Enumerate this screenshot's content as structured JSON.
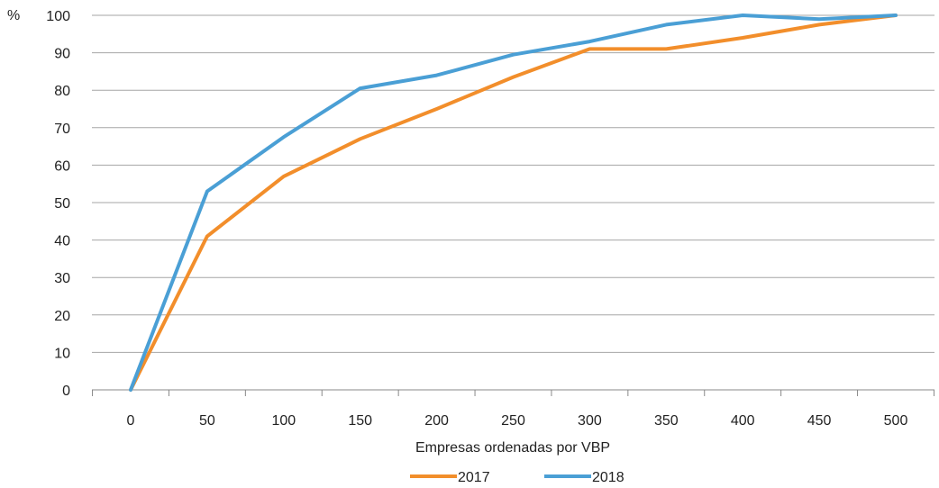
{
  "chart_data": {
    "type": "line",
    "title": "",
    "ylabel": "%",
    "xlabel": "Empresas ordenadas por VBP",
    "x": [
      0,
      50,
      100,
      150,
      200,
      250,
      300,
      350,
      400,
      450,
      500
    ],
    "xticks": [
      "0",
      "50",
      "100",
      "150",
      "200",
      "250",
      "300",
      "350",
      "400",
      "450",
      "500"
    ],
    "yticks": [
      "0",
      "10",
      "20",
      "30",
      "40",
      "50",
      "60",
      "70",
      "80",
      "90",
      "100"
    ],
    "xlim": [
      0,
      500
    ],
    "ylim": [
      0,
      100
    ],
    "grid": "horizontal",
    "legend_position": "bottom-center",
    "series": [
      {
        "name": "2017",
        "color": "#f28e2b",
        "values": [
          0,
          41,
          57,
          67,
          75,
          83.5,
          91,
          91,
          94,
          97.5,
          100
        ]
      },
      {
        "name": "2018",
        "color": "#4a9fd5",
        "values": [
          0,
          53,
          67.5,
          80.5,
          84,
          89.5,
          93,
          97.5,
          100,
          99,
          100
        ]
      }
    ]
  }
}
